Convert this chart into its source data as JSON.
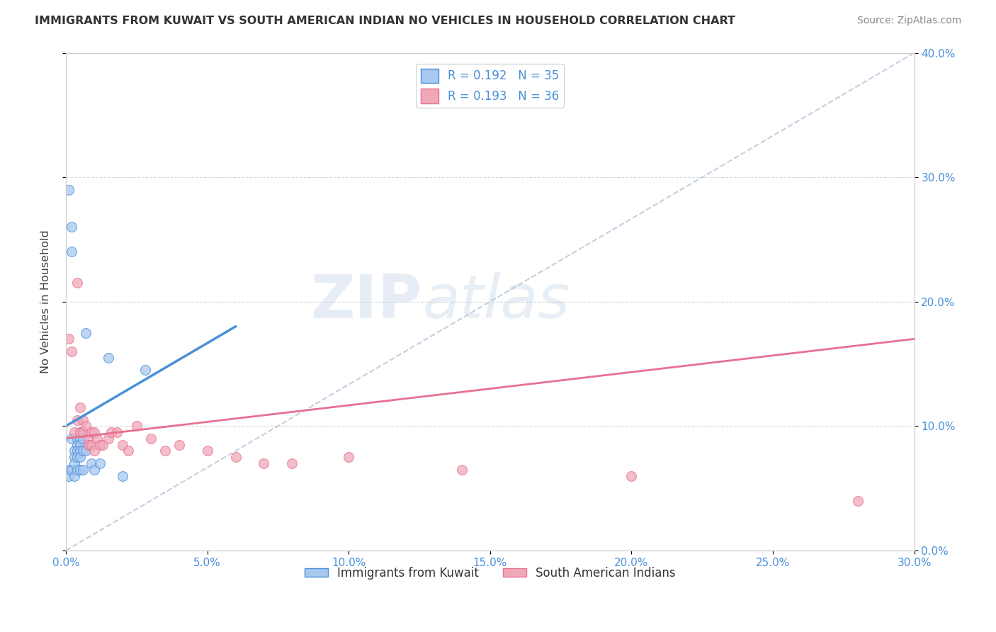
{
  "title": "IMMIGRANTS FROM KUWAIT VS SOUTH AMERICAN INDIAN NO VEHICLES IN HOUSEHOLD CORRELATION CHART",
  "source": "Source: ZipAtlas.com",
  "xlim": [
    0.0,
    0.3
  ],
  "ylim": [
    0.0,
    0.4
  ],
  "legend1_label": "R = 0.192   N = 35",
  "legend2_label": "R = 0.193   N = 36",
  "legend_series1": "Immigrants from Kuwait",
  "legend_series2": "South American Indians",
  "color_kuwait": "#a8c8f0",
  "color_sa_indian": "#f0a8b8",
  "color_line_kuwait": "#4a90d9",
  "color_line_sa_indian": "#e87090",
  "color_line_dashed": "#b8c8d8",
  "watermark_zip": "ZIP",
  "watermark_atlas": "atlas",
  "kuwait_x": [
    0.001,
    0.001,
    0.001,
    0.002,
    0.002,
    0.002,
    0.002,
    0.003,
    0.003,
    0.003,
    0.003,
    0.004,
    0.004,
    0.004,
    0.004,
    0.004,
    0.005,
    0.005,
    0.005,
    0.005,
    0.005,
    0.005,
    0.006,
    0.006,
    0.006,
    0.006,
    0.007,
    0.007,
    0.008,
    0.009,
    0.01,
    0.012,
    0.015,
    0.02,
    0.028
  ],
  "kuwait_y": [
    0.29,
    0.065,
    0.06,
    0.26,
    0.24,
    0.09,
    0.065,
    0.08,
    0.075,
    0.07,
    0.06,
    0.09,
    0.085,
    0.08,
    0.075,
    0.065,
    0.095,
    0.09,
    0.085,
    0.08,
    0.075,
    0.065,
    0.095,
    0.09,
    0.08,
    0.065,
    0.175,
    0.08,
    0.085,
    0.07,
    0.065,
    0.07,
    0.155,
    0.06,
    0.145
  ],
  "sai_x": [
    0.001,
    0.002,
    0.003,
    0.004,
    0.004,
    0.005,
    0.005,
    0.006,
    0.006,
    0.007,
    0.008,
    0.008,
    0.009,
    0.009,
    0.01,
    0.01,
    0.011,
    0.012,
    0.013,
    0.015,
    0.016,
    0.018,
    0.02,
    0.022,
    0.025,
    0.03,
    0.035,
    0.04,
    0.05,
    0.06,
    0.07,
    0.08,
    0.1,
    0.14,
    0.2,
    0.28
  ],
  "sai_y": [
    0.17,
    0.16,
    0.095,
    0.215,
    0.105,
    0.115,
    0.095,
    0.105,
    0.095,
    0.1,
    0.09,
    0.085,
    0.095,
    0.085,
    0.095,
    0.08,
    0.09,
    0.085,
    0.085,
    0.09,
    0.095,
    0.095,
    0.085,
    0.08,
    0.1,
    0.09,
    0.08,
    0.085,
    0.08,
    0.075,
    0.07,
    0.07,
    0.075,
    0.065,
    0.06,
    0.04
  ],
  "kuwait_line_x0": 0.0,
  "kuwait_line_y0": 0.1,
  "kuwait_line_x1": 0.06,
  "kuwait_line_y1": 0.18,
  "sai_line_x0": 0.0,
  "sai_line_y0": 0.09,
  "sai_line_x1": 0.3,
  "sai_line_y1": 0.17
}
